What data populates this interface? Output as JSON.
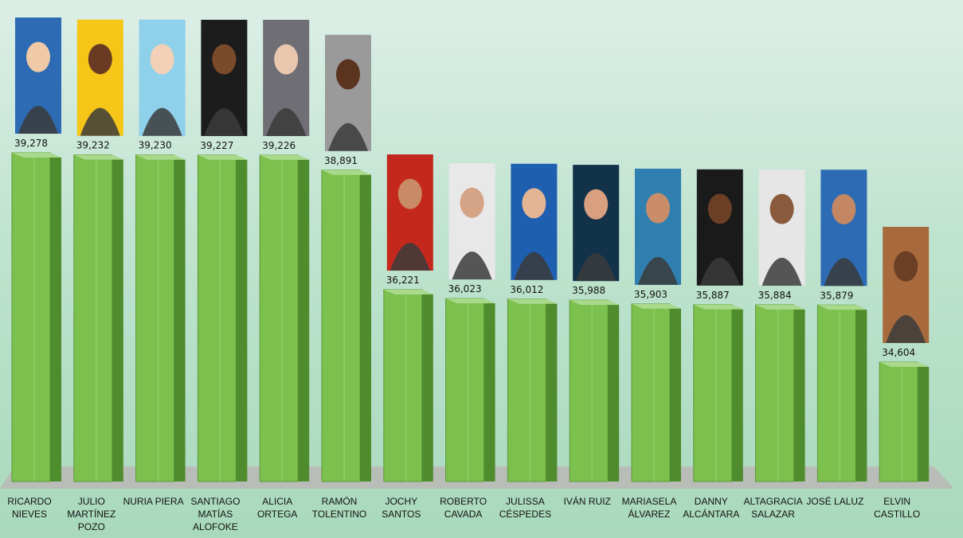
{
  "chart_data": {
    "type": "bar",
    "title": "",
    "xlabel": "",
    "ylabel": "",
    "categories": [
      [
        "RICARDO",
        "NIEVES"
      ],
      [
        "JULIO",
        "MARTÍNEZ",
        "POZO"
      ],
      [
        "NURIA PIERA"
      ],
      [
        "SANTIAGO",
        "MATÍAS",
        "ALOFOKE"
      ],
      [
        "ALICIA",
        "ORTEGA"
      ],
      [
        "RAMÓN",
        "TOLENTINO"
      ],
      [
        "JOCHY",
        "SANTOS"
      ],
      [
        "ROBERTO",
        "CAVADA"
      ],
      [
        "JULISSA",
        "CÉSPEDES"
      ],
      [
        "IVÁN RUIZ"
      ],
      [
        "MARIASELA",
        "ÁLVAREZ"
      ],
      [
        "DANNY",
        "ALCÁNTARA"
      ],
      [
        "ALTAGRACIA",
        "SALAZAR"
      ],
      [
        "JOSÉ LALUZ"
      ],
      [
        "ELVIN",
        "CASTILLO"
      ]
    ],
    "values": [
      39278,
      39232,
      39230,
      39227,
      39226,
      38891,
      36221,
      36023,
      36012,
      35988,
      35903,
      35887,
      35884,
      35879,
      34604
    ],
    "value_labels": [
      "39,278",
      "39,232",
      "39,230",
      "39,227",
      "39,226",
      "38,891",
      "36,221",
      "36,023",
      "36,012",
      "35,988",
      "35,903",
      "35,887",
      "35,884",
      "35,879",
      "34,604"
    ],
    "grid": false,
    "legend": "none",
    "bar_color": "#7cc04e",
    "bar_side_color": "#4f8c2e",
    "floor_color": "#b9bdb8"
  }
}
